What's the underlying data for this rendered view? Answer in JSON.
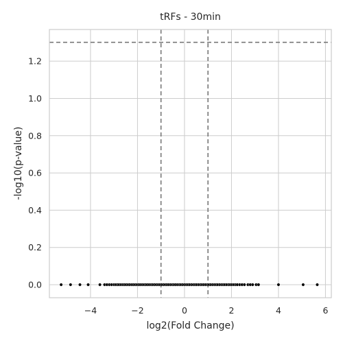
{
  "chart_data": {
    "type": "scatter",
    "title": "tRFs - 30min",
    "xlabel": "log2(Fold Change)",
    "ylabel": "-log10(p-value)",
    "xlim": [
      -5.75,
      6.25
    ],
    "ylim": [
      -0.07,
      1.37
    ],
    "xticks": [
      -4,
      -2,
      0,
      2,
      4,
      6
    ],
    "yticks": [
      0.0,
      0.2,
      0.4,
      0.6,
      0.8,
      1.0,
      1.2
    ],
    "x_tick_labels": [
      "−4",
      "−2",
      "0",
      "2",
      "4",
      "6"
    ],
    "y_tick_labels": [
      "0.0",
      "0.2",
      "0.4",
      "0.6",
      "0.8",
      "1.0",
      "1.2"
    ],
    "grid": true,
    "thresholds": {
      "horizontal_y": 1.301,
      "vertical_x": [
        -1,
        1
      ]
    },
    "x": [
      -5.25,
      -4.85,
      -4.45,
      -4.1,
      -3.6,
      -3.4,
      -3.3,
      -3.2,
      -3.1,
      -3.0,
      -2.92,
      -2.85,
      -2.78,
      -2.7,
      -2.62,
      -2.55,
      -2.48,
      -2.4,
      -2.33,
      -2.25,
      -2.18,
      -2.1,
      -2.02,
      -1.95,
      -1.88,
      -1.8,
      -1.72,
      -1.65,
      -1.58,
      -1.5,
      -1.42,
      -1.35,
      -1.28,
      -1.2,
      -1.12,
      -1.05,
      -0.98,
      -0.9,
      -0.82,
      -0.75,
      -0.68,
      -0.6,
      -0.52,
      -0.45,
      -0.38,
      -0.3,
      -0.22,
      -0.15,
      -0.08,
      0.0,
      0.08,
      0.15,
      0.22,
      0.3,
      0.38,
      0.45,
      0.52,
      0.6,
      0.68,
      0.75,
      0.82,
      0.9,
      0.98,
      1.05,
      1.12,
      1.2,
      1.28,
      1.35,
      1.42,
      1.5,
      1.58,
      1.65,
      1.72,
      1.8,
      1.88,
      1.95,
      2.02,
      2.1,
      2.18,
      2.25,
      2.35,
      2.45,
      2.55,
      2.7,
      2.8,
      2.9,
      3.05,
      3.15,
      4.0,
      5.05,
      5.65
    ],
    "y": [
      0,
      0,
      0,
      0,
      0,
      0,
      0,
      0,
      0,
      0,
      0,
      0,
      0,
      0,
      0,
      0,
      0,
      0,
      0,
      0,
      0,
      0,
      0,
      0,
      0,
      0,
      0,
      0,
      0,
      0,
      0,
      0,
      0,
      0,
      0,
      0,
      0,
      0,
      0,
      0,
      0,
      0,
      0,
      0,
      0,
      0,
      0,
      0,
      0,
      0,
      0,
      0,
      0,
      0,
      0,
      0,
      0,
      0,
      0,
      0,
      0,
      0,
      0,
      0,
      0,
      0,
      0,
      0,
      0,
      0,
      0,
      0,
      0,
      0,
      0,
      0,
      0,
      0,
      0,
      0,
      0,
      0,
      0,
      0,
      0,
      0,
      0,
      0,
      0,
      0,
      0
    ]
  }
}
